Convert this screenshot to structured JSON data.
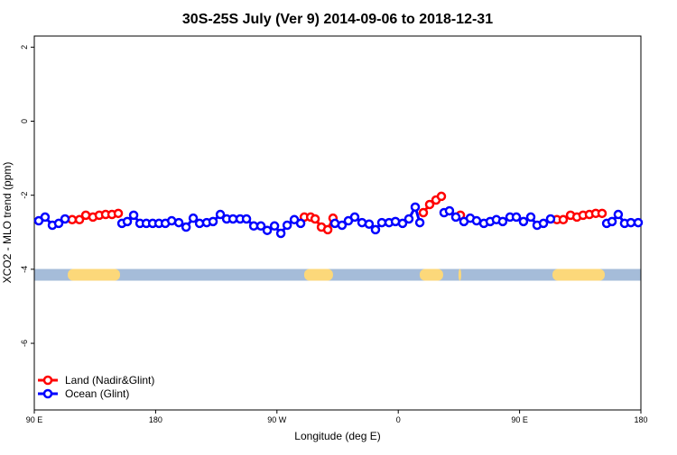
{
  "chart_data": {
    "type": "line",
    "title": "30S-25S July (Ver 9)   2014-09-06 to 2018-12-31",
    "x_label": "Longitude (deg E)",
    "y_label": "XCO2 - MLO trend (ppm)",
    "xlim": [
      90,
      540
    ],
    "xticks": [
      {
        "value": 90,
        "label": "90 E"
      },
      {
        "value": 180,
        "label": "180"
      },
      {
        "value": 270,
        "label": "90 W"
      },
      {
        "value": 360,
        "label": "0"
      },
      {
        "value": 450,
        "label": "90 E"
      },
      {
        "value": 540,
        "label": "180"
      }
    ],
    "ylim": [
      -7.8,
      2.3
    ],
    "yticks": [
      2,
      0,
      -2,
      -4,
      -6
    ],
    "legend": "bottom-left",
    "land_band": {
      "y": -4.15,
      "ocean_color": "#a5bcd9",
      "land_color": "#fcd87a",
      "land_spans": [
        [
          114.8,
          153.6
        ],
        [
          290.2,
          311.6
        ],
        [
          375.9,
          393.3
        ],
        [
          404.7,
          406.7
        ],
        [
          474.4,
          513.2
        ]
      ]
    },
    "series": [
      {
        "name": "Land (Nadir&Glint)",
        "color": "#ff0000",
        "x": [
          118.1,
          123.5,
          128.2,
          133.5,
          138.2,
          142.9,
          147.6,
          152.3,
          null,
          290.3,
          295.0,
          298.3,
          303.0,
          307.7,
          311.6,
          null,
          378.6,
          383.3,
          388.0,
          392.0,
          null,
          406.1,
          null,
          477.7,
          482.4,
          487.8,
          492.5,
          497.1,
          501.8,
          506.5,
          511.2
        ],
        "values": [
          -2.66,
          -2.66,
          -2.54,
          -2.59,
          -2.54,
          -2.52,
          -2.52,
          -2.49,
          null,
          -2.59,
          -2.59,
          -2.64,
          -2.86,
          -2.93,
          -2.62,
          null,
          -2.47,
          -2.25,
          -2.13,
          -2.03,
          null,
          -2.54,
          null,
          -2.66,
          -2.66,
          -2.54,
          -2.59,
          -2.54,
          -2.52,
          -2.49,
          -2.49
        ]
      },
      {
        "name": "Ocean (Glint)",
        "color": "#0000ff",
        "x": [
          93.3,
          98.0,
          103.4,
          108.1,
          112.8,
          null,
          155.0,
          159.0,
          163.7,
          168.4,
          173.1,
          177.8,
          182.5,
          187.2,
          191.9,
          197.2,
          202.6,
          207.9,
          212.6,
          217.9,
          222.6,
          228.0,
          232.7,
          237.4,
          242.7,
          247.4,
          252.8,
          258.1,
          262.8,
          268.2,
          272.9,
          277.6,
          282.9,
          287.6,
          null,
          313.0,
          318.3,
          323.0,
          327.7,
          333.1,
          338.4,
          343.1,
          347.8,
          353.2,
          357.9,
          363.2,
          367.9,
          372.6,
          376.0,
          null,
          394.0,
          398.0,
          402.7,
          null,
          408.7,
          413.4,
          418.1,
          423.5,
          428.2,
          432.8,
          437.5,
          442.9,
          447.6,
          452.9,
          458.3,
          463.0,
          467.7,
          473.0,
          null,
          514.6,
          518.6,
          523.2,
          527.9,
          532.6,
          538.0
        ],
        "values": [
          -2.69,
          -2.59,
          -2.81,
          -2.76,
          -2.64,
          null,
          -2.76,
          -2.71,
          -2.54,
          -2.76,
          -2.76,
          -2.76,
          -2.76,
          -2.76,
          -2.69,
          -2.74,
          -2.86,
          -2.62,
          -2.76,
          -2.74,
          -2.71,
          -2.52,
          -2.64,
          -2.64,
          -2.64,
          -2.64,
          -2.83,
          -2.83,
          -2.95,
          -2.83,
          -3.03,
          -2.81,
          -2.66,
          -2.76,
          null,
          -2.76,
          -2.81,
          -2.69,
          -2.59,
          -2.74,
          -2.78,
          -2.93,
          -2.74,
          -2.74,
          -2.71,
          -2.76,
          -2.64,
          -2.32,
          -2.74,
          null,
          -2.47,
          -2.42,
          -2.59,
          null,
          -2.71,
          -2.62,
          -2.69,
          -2.76,
          -2.71,
          -2.66,
          -2.71,
          -2.59,
          -2.59,
          -2.71,
          -2.59,
          -2.81,
          -2.76,
          -2.64,
          null,
          -2.76,
          -2.71,
          -2.52,
          -2.76,
          -2.74,
          -2.74
        ]
      }
    ]
  }
}
